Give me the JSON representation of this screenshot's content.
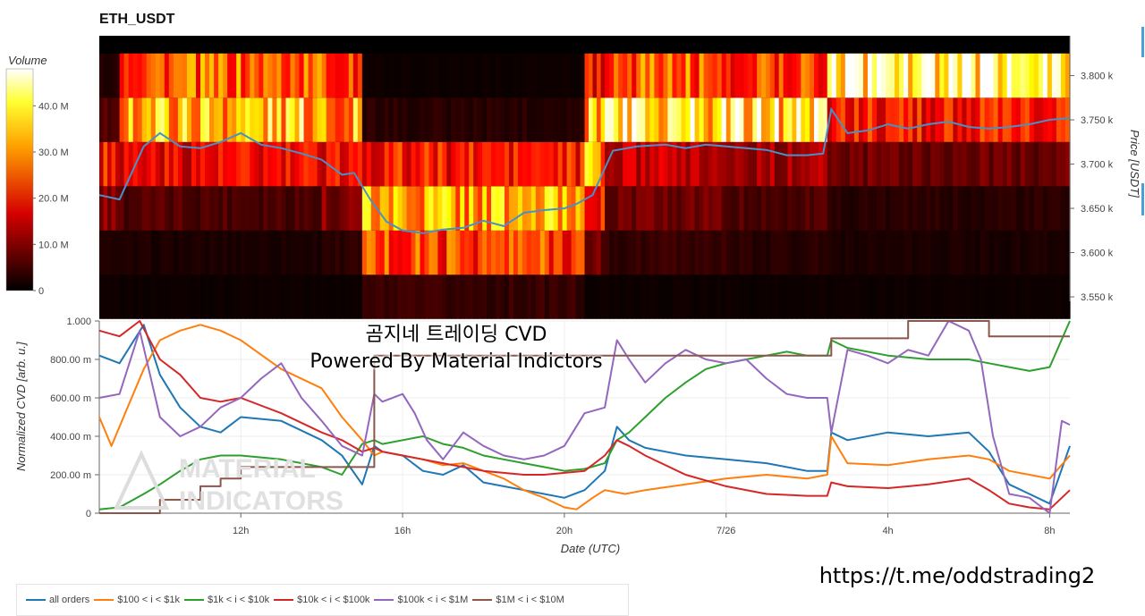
{
  "title": "ETH_USDT",
  "colorbar": {
    "label": "Volume",
    "ticks": [
      "40.0 M",
      "30.0 M",
      "20.0 M",
      "10.0 M",
      "0"
    ],
    "tick_values": [
      40,
      30,
      20,
      10,
      0
    ]
  },
  "overlay": {
    "line1": "곰지네 트레이딩 CVD",
    "line2": "Powered By Material Indictors"
  },
  "watermark": {
    "line1": "MATERIAL",
    "line2": "INDICATORS"
  },
  "url": "https://t.me/oddstrading2",
  "colors": {
    "all_orders": "#1f77b4",
    "s100_1k": "#ff7f0e",
    "s1k_10k": "#2ca02c",
    "s10k_100k": "#d62728",
    "s100k_1m": "#9467bd",
    "s1m_10m": "#8c564b",
    "price_line": "#4a90c8",
    "accent": "#4a9fd8"
  },
  "chart_data": [
    {
      "type": "heatmap",
      "title": "ETH_USDT",
      "ylabel": "Price [USDT]",
      "ylim": [
        3545,
        3845
      ],
      "yticks": [
        3550,
        3600,
        3650,
        3700,
        3750,
        3800
      ],
      "ytick_labels": [
        "3.550 k",
        "3.600 k",
        "3.650 k",
        "3.700 k",
        "3.750 k",
        "3.800 k"
      ],
      "color_scale": "hot",
      "zlabel": "Volume",
      "zlim": [
        0,
        48
      ],
      "price_bins": [
        3550,
        3600,
        3650,
        3700,
        3750,
        3800
      ],
      "x_hours": [
        8.5,
        32.5
      ],
      "segments": [
        {
          "x0": 8.5,
          "x1": 9.0,
          "volumes": [
            1,
            2,
            10,
            20,
            6,
            3
          ]
        },
        {
          "x0": 9.0,
          "x1": 14.0,
          "volumes": [
            1,
            2,
            6,
            18,
            34,
            26
          ]
        },
        {
          "x0": 14.0,
          "x1": 15.0,
          "volumes": [
            1,
            3,
            10,
            18,
            32,
            22
          ]
        },
        {
          "x0": 15.0,
          "x1": 20.5,
          "volumes": [
            4,
            24,
            32,
            20,
            3,
            1
          ]
        },
        {
          "x0": 20.5,
          "x1": 21.0,
          "volumes": [
            1,
            8,
            22,
            30,
            36,
            20
          ]
        },
        {
          "x0": 21.0,
          "x1": 24.0,
          "volumes": [
            1,
            4,
            8,
            14,
            40,
            26
          ]
        },
        {
          "x0": 24.0,
          "x1": 26.5,
          "volumes": [
            1,
            3,
            6,
            12,
            38,
            24
          ]
        },
        {
          "x0": 26.5,
          "x1": 32.5,
          "volumes": [
            1,
            2,
            3,
            8,
            20,
            42
          ]
        }
      ],
      "price_line": {
        "x": [
          8.5,
          9.0,
          9.6,
          10.0,
          10.5,
          11.0,
          11.5,
          12.0,
          12.5,
          13.0,
          13.5,
          14.0,
          14.5,
          14.8,
          15.2,
          15.6,
          16.0,
          16.5,
          17.0,
          17.5,
          18.0,
          18.5,
          19.0,
          19.5,
          20.0,
          20.3,
          20.7,
          21.2,
          21.8,
          22.5,
          23.0,
          23.5,
          24.0,
          24.5,
          25.0,
          25.5,
          26.0,
          26.4,
          26.6,
          27.0,
          27.5,
          28.0,
          28.5,
          29.0,
          29.5,
          30.0,
          30.5,
          31.0,
          31.5,
          32.0,
          32.5
        ],
        "y": [
          3665,
          3660,
          3720,
          3735,
          3720,
          3718,
          3725,
          3735,
          3722,
          3718,
          3712,
          3705,
          3688,
          3690,
          3660,
          3635,
          3625,
          3622,
          3626,
          3628,
          3636,
          3630,
          3645,
          3648,
          3650,
          3655,
          3665,
          3715,
          3720,
          3722,
          3718,
          3722,
          3720,
          3718,
          3716,
          3710,
          3710,
          3712,
          3762,
          3735,
          3738,
          3745,
          3740,
          3745,
          3748,
          3742,
          3740,
          3742,
          3745,
          3750,
          3752
        ]
      }
    },
    {
      "type": "line",
      "xlabel": "Date (UTC)",
      "ylabel": "Normalized CVD [arb. u.]",
      "ylim": [
        0,
        1
      ],
      "yticks": [
        0,
        0.2,
        0.4,
        0.6,
        0.8,
        1.0
      ],
      "ytick_labels": [
        "0",
        "200.00 m",
        "400.00 m",
        "600.00 m",
        "800.00 m",
        "1.000"
      ],
      "xlim": [
        8.5,
        32.5
      ],
      "xticks": [
        12,
        16,
        20,
        24,
        28,
        32
      ],
      "xtick_labels": [
        "12h",
        "16h",
        "20h",
        "7/26",
        "4h",
        "8h"
      ],
      "series": [
        {
          "name": "all orders",
          "x": [
            8.5,
            9.0,
            9.6,
            10.0,
            10.5,
            11.0,
            11.5,
            12.0,
            13.0,
            14.0,
            14.5,
            15.0,
            15.3,
            15.5,
            16.0,
            16.5,
            17.0,
            17.5,
            18.0,
            18.5,
            19.0,
            19.5,
            20.0,
            20.5,
            21.0,
            21.3,
            21.6,
            22.0,
            23.0,
            24.0,
            25.0,
            26.0,
            26.5,
            26.6,
            27.0,
            28.0,
            29.0,
            30.0,
            30.5,
            31.0,
            31.5,
            32.0,
            32.5
          ],
          "y": [
            0.82,
            0.78,
            0.98,
            0.72,
            0.55,
            0.45,
            0.42,
            0.5,
            0.48,
            0.38,
            0.3,
            0.15,
            0.35,
            0.32,
            0.3,
            0.22,
            0.2,
            0.25,
            0.16,
            0.14,
            0.12,
            0.1,
            0.08,
            0.12,
            0.22,
            0.45,
            0.38,
            0.34,
            0.3,
            0.28,
            0.26,
            0.22,
            0.22,
            0.42,
            0.38,
            0.42,
            0.4,
            0.42,
            0.32,
            0.15,
            0.1,
            0.05,
            0.35
          ]
        },
        {
          "name": "$100 < i < $1k",
          "x": [
            8.5,
            8.8,
            9.2,
            9.6,
            10.0,
            10.5,
            11.0,
            11.5,
            12.0,
            13.0,
            14.0,
            14.5,
            15.0,
            15.3,
            15.5,
            16.0,
            16.5,
            17.0,
            17.5,
            18.0,
            18.5,
            19.0,
            19.5,
            20.0,
            20.3,
            20.7,
            21.0,
            21.5,
            22.0,
            23.0,
            24.0,
            25.0,
            26.0,
            26.5,
            26.6,
            27.0,
            28.0,
            29.0,
            30.0,
            30.5,
            31.0,
            31.5,
            32.0,
            32.5
          ],
          "y": [
            0.5,
            0.35,
            0.55,
            0.75,
            0.9,
            0.95,
            0.98,
            0.95,
            0.9,
            0.75,
            0.65,
            0.5,
            0.38,
            0.3,
            0.32,
            0.3,
            0.28,
            0.25,
            0.26,
            0.22,
            0.18,
            0.12,
            0.08,
            0.03,
            0.02,
            0.08,
            0.12,
            0.1,
            0.12,
            0.15,
            0.18,
            0.2,
            0.18,
            0.2,
            0.4,
            0.26,
            0.25,
            0.28,
            0.3,
            0.28,
            0.22,
            0.2,
            0.18,
            0.3
          ]
        },
        {
          "name": "$1k < i < $10k",
          "x": [
            8.5,
            9.0,
            9.6,
            10.0,
            10.5,
            11.0,
            11.5,
            12.0,
            13.0,
            14.0,
            14.5,
            15.0,
            15.3,
            15.5,
            16.0,
            16.5,
            17.0,
            17.5,
            18.0,
            18.5,
            19.0,
            19.5,
            20.0,
            20.5,
            21.0,
            21.3,
            21.6,
            22.0,
            22.5,
            23.0,
            23.5,
            24.0,
            24.5,
            25.0,
            25.5,
            26.0,
            26.5,
            26.6,
            27.0,
            28.0,
            29.0,
            30.0,
            30.5,
            31.0,
            31.5,
            32.0,
            32.5
          ],
          "y": [
            0.02,
            0.03,
            0.1,
            0.15,
            0.22,
            0.28,
            0.3,
            0.3,
            0.28,
            0.24,
            0.2,
            0.36,
            0.38,
            0.36,
            0.38,
            0.4,
            0.36,
            0.34,
            0.3,
            0.28,
            0.26,
            0.24,
            0.22,
            0.23,
            0.26,
            0.38,
            0.42,
            0.5,
            0.6,
            0.68,
            0.75,
            0.78,
            0.8,
            0.82,
            0.84,
            0.82,
            0.82,
            0.9,
            0.86,
            0.82,
            0.8,
            0.8,
            0.78,
            0.76,
            0.74,
            0.76,
            1.0
          ]
        },
        {
          "name": "$10k < i < $100k",
          "x": [
            8.5,
            9.0,
            9.5,
            10.0,
            10.5,
            11.0,
            11.5,
            12.0,
            13.0,
            14.0,
            14.5,
            15.0,
            15.3,
            15.5,
            16.0,
            16.5,
            17.0,
            17.5,
            18.0,
            18.5,
            19.0,
            19.5,
            20.0,
            20.5,
            21.0,
            21.3,
            21.6,
            22.0,
            23.0,
            24.0,
            25.0,
            26.0,
            26.5,
            26.6,
            27.0,
            28.0,
            29.0,
            30.0,
            30.5,
            31.0,
            31.5,
            32.0,
            32.5
          ],
          "y": [
            0.95,
            0.92,
            1.0,
            0.8,
            0.72,
            0.6,
            0.58,
            0.6,
            0.52,
            0.42,
            0.38,
            0.32,
            0.34,
            0.32,
            0.3,
            0.28,
            0.26,
            0.24,
            0.22,
            0.21,
            0.2,
            0.2,
            0.21,
            0.22,
            0.3,
            0.38,
            0.35,
            0.3,
            0.2,
            0.14,
            0.1,
            0.09,
            0.09,
            0.16,
            0.14,
            0.13,
            0.15,
            0.18,
            0.12,
            0.05,
            0.03,
            0.02,
            0.12
          ]
        },
        {
          "name": "$100k < i < $1M",
          "x": [
            8.5,
            9.0,
            9.5,
            10.0,
            10.5,
            11.0,
            11.5,
            12.0,
            12.5,
            13.0,
            13.5,
            14.0,
            14.5,
            15.0,
            15.3,
            15.5,
            16.0,
            16.3,
            16.6,
            17.0,
            17.5,
            18.0,
            18.5,
            19.0,
            19.5,
            20.0,
            20.5,
            21.0,
            21.3,
            21.6,
            22.0,
            22.5,
            23.0,
            23.5,
            24.0,
            24.5,
            25.0,
            25.5,
            26.0,
            26.5,
            26.6,
            27.0,
            27.5,
            28.0,
            28.5,
            29.0,
            29.5,
            30.0,
            30.3,
            30.6,
            31.0,
            31.5,
            32.0,
            32.3,
            32.5
          ],
          "y": [
            0.6,
            0.62,
            0.95,
            0.5,
            0.4,
            0.45,
            0.55,
            0.6,
            0.7,
            0.78,
            0.6,
            0.48,
            0.35,
            0.3,
            0.62,
            0.58,
            0.62,
            0.52,
            0.38,
            0.28,
            0.42,
            0.35,
            0.3,
            0.28,
            0.3,
            0.35,
            0.52,
            0.55,
            0.9,
            0.8,
            0.68,
            0.78,
            0.85,
            0.8,
            0.78,
            0.8,
            0.7,
            0.62,
            0.6,
            0.6,
            0.42,
            0.85,
            0.82,
            0.78,
            0.85,
            0.82,
            1.0,
            0.95,
            0.8,
            0.4,
            0.1,
            0.08,
            0.0,
            0.48,
            0.46
          ]
        },
        {
          "name": "$1M < i < $10M",
          "x": [
            8.5,
            9.0,
            9.6,
            10.0,
            10.5,
            11.0,
            11.5,
            12.0,
            13.0,
            14.0,
            14.5,
            15.0,
            15.3,
            16.0,
            18.0,
            20.0,
            22.0,
            24.0,
            26.0,
            26.5,
            26.6,
            27.0,
            28.0,
            28.5,
            29.0,
            30.0,
            30.5,
            31.0,
            32.0,
            32.5
          ],
          "y": [
            0.0,
            0.0,
            0.0,
            0.07,
            0.07,
            0.14,
            0.18,
            0.24,
            0.24,
            0.24,
            0.24,
            0.24,
            0.82,
            0.82,
            0.82,
            0.82,
            0.82,
            0.82,
            0.82,
            0.82,
            0.91,
            0.91,
            0.91,
            1.0,
            1.0,
            1.0,
            0.92,
            0.92,
            0.92,
            0.92
          ]
        }
      ]
    }
  ]
}
